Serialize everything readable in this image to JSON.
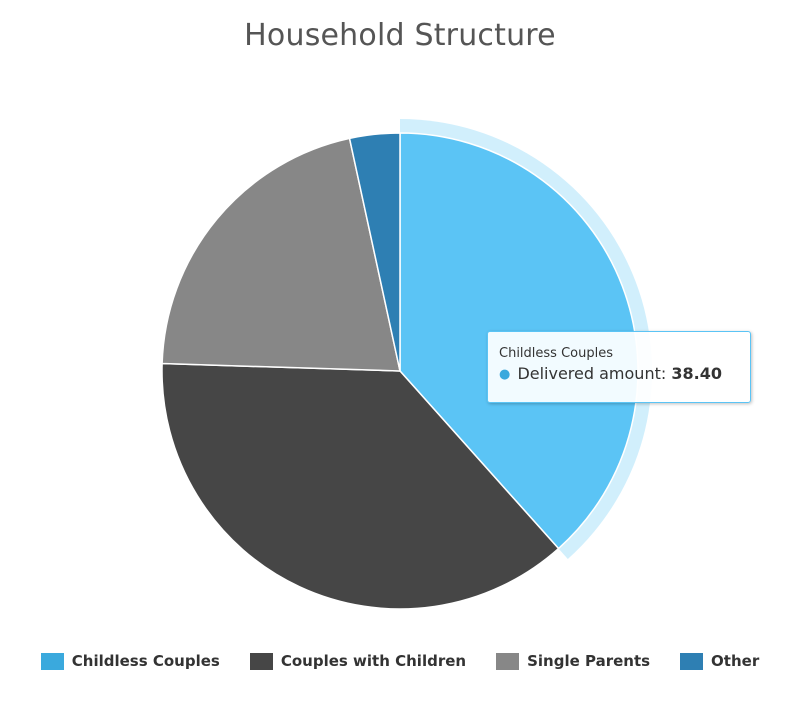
{
  "chart_data": {
    "type": "pie",
    "title": "Household Structure",
    "series_name": "Delivered amount",
    "slices": [
      {
        "name": "Childless Couples",
        "value": 38.4,
        "color": "#5bc4f5",
        "legend_color": "#3aa9dd",
        "selected": true
      },
      {
        "name": "Couples with Children",
        "value": 37.1,
        "color": "#464646",
        "legend_color": "#464646",
        "selected": false
      },
      {
        "name": "Single Parents",
        "value": 21.1,
        "color": "#878787",
        "legend_color": "#878787",
        "selected": false
      },
      {
        "name": "Other",
        "value": 3.4,
        "color": "#2e7fb3",
        "legend_color": "#2e7fb3",
        "selected": false
      }
    ],
    "legend_position": "bottom"
  },
  "tooltip": {
    "header": "Childless Couples",
    "series_label": "Delivered amount:",
    "value": "38.40"
  }
}
